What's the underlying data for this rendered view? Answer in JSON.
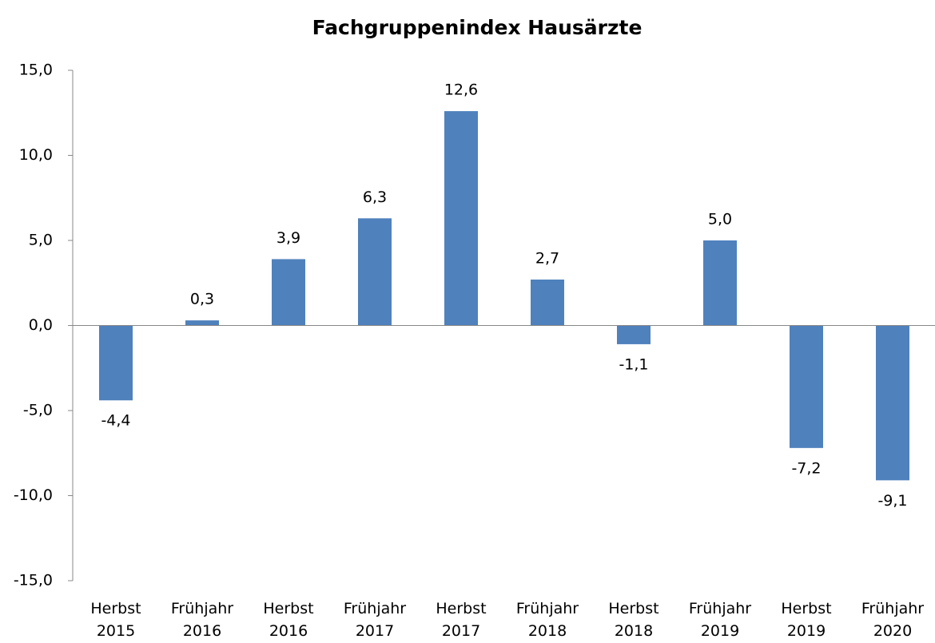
{
  "chart_data": {
    "type": "bar",
    "title": "Fachgruppenindex Hausärzte",
    "categories": [
      "Herbst 2015",
      "Frühjahr 2016",
      "Herbst 2016",
      "Frühjahr 2017",
      "Herbst 2017",
      "Frühjahr 2018",
      "Herbst 2018",
      "Frühjahr 2019",
      "Herbst 2019",
      "Frühjahr 2020"
    ],
    "values": [
      -4.4,
      0.3,
      3.9,
      6.3,
      12.6,
      2.7,
      -1.1,
      5.0,
      -7.2,
      -9.1
    ],
    "value_labels": [
      "-4,4",
      "0,3",
      "3,9",
      "6,3",
      "12,6",
      "2,7",
      "-1,1",
      "5,0",
      "-7,2",
      "-9,1"
    ],
    "color": "#4f81bd",
    "ylim": [
      -15,
      15
    ],
    "yticks": [
      {
        "value": -15,
        "label": "-15,0"
      },
      {
        "value": -10,
        "label": "-10,0"
      },
      {
        "value": -5,
        "label": "-5,0"
      },
      {
        "value": 0,
        "label": "0,0"
      },
      {
        "value": 5,
        "label": "5,0"
      },
      {
        "value": 10,
        "label": "10,0"
      },
      {
        "value": 15,
        "label": "15,0"
      }
    ],
    "grid": false
  }
}
